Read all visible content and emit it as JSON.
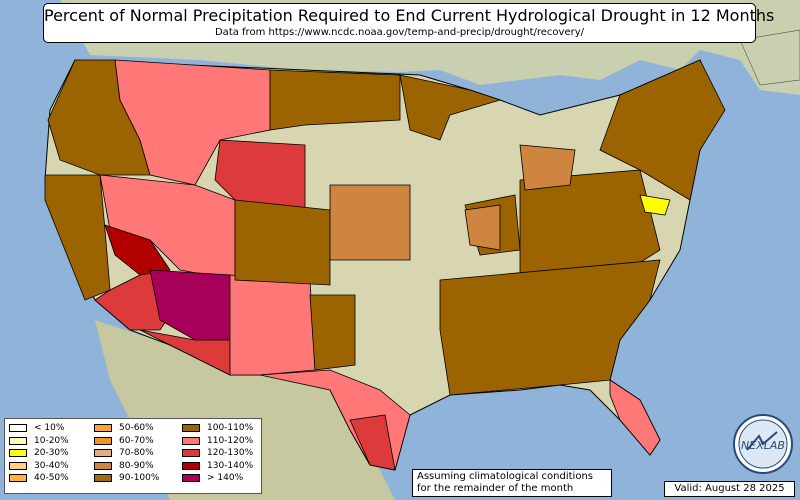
{
  "title": "Percent of Normal Precipitation Required to End Current Hydrological Drought in 12 Months",
  "subtitle": "Data from https://www.ncdc.noaa.gov/temp-and-precip/drought/recovery/",
  "note": {
    "line1": "Assuming climatological conditions",
    "line2": "for the remainder of the month"
  },
  "valid": "Valid: August 28 2025",
  "logo": {
    "text": "NEXLAB"
  },
  "legend": [
    {
      "label": "< 10%",
      "color": "#fffff0"
    },
    {
      "label": "10-20%",
      "color": "#ffffb4"
    },
    {
      "label": "20-30%",
      "color": "#ffff00"
    },
    {
      "label": "30-40%",
      "color": "#ffd27f"
    },
    {
      "label": "40-50%",
      "color": "#ffb040"
    },
    {
      "label": "50-60%",
      "color": "#f7a536"
    },
    {
      "label": "60-70%",
      "color": "#ef9427"
    },
    {
      "label": "70-80%",
      "color": "#e3ad7d"
    },
    {
      "label": "80-90%",
      "color": "#cd853f"
    },
    {
      "label": "90-100%",
      "color": "#a56a10"
    },
    {
      "label": "100-110%",
      "color": "#9c6400"
    },
    {
      "label": "110-120%",
      "color": "#ff7777"
    },
    {
      "label": "120-130%",
      "color": "#dd3b3b"
    },
    {
      "label": "130-140%",
      "color": "#b20000"
    },
    {
      "label": "> 140%",
      "color": "#a8005a"
    }
  ],
  "colors": {
    "ocean": "#8fb3d9",
    "land": "#d8d6b0",
    "neighbor_land": "#c8d0b0"
  }
}
